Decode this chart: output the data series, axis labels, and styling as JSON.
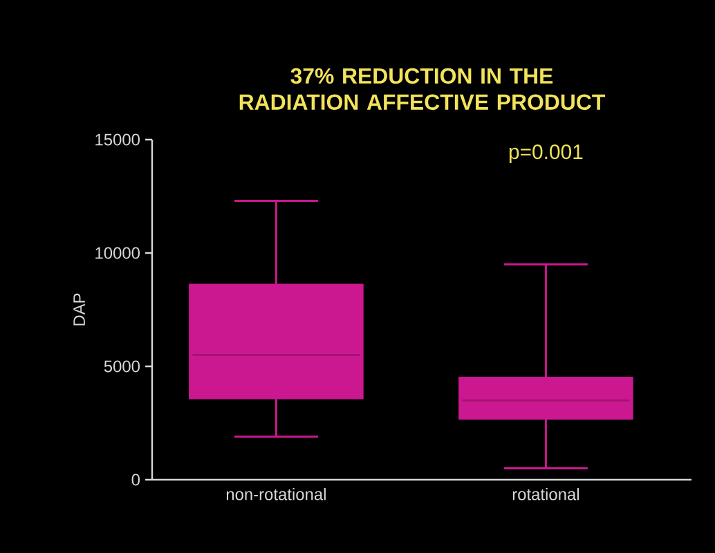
{
  "chart_data": {
    "type": "box",
    "title": "37% REDUCTION IN THE RADIATION AFFECTIVE PRODUCT",
    "ylabel": "DAP",
    "categories": [
      "non-rotational",
      "rotational"
    ],
    "boxes": [
      {
        "low": 1900,
        "q1": 3600,
        "median": 5500,
        "q3": 8600,
        "high": 12300
      },
      {
        "low": 500,
        "q1": 2700,
        "median": 3500,
        "q3": 4500,
        "high": 9500
      }
    ],
    "color": "#cc1890",
    "ylim": [
      0,
      15000
    ],
    "yticks": [
      0,
      5000,
      10000,
      15000
    ],
    "annotations": [
      "p=0.001"
    ]
  }
}
